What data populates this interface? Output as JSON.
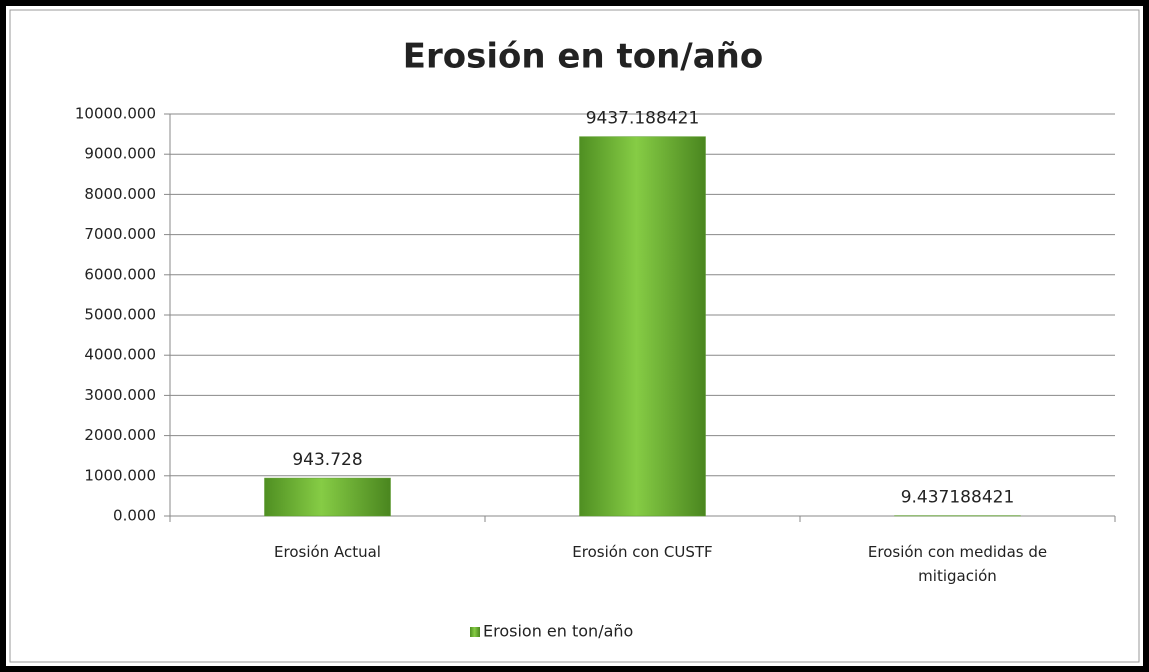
{
  "chart_data": {
    "type": "bar",
    "title": "Erosión en ton/año",
    "categories": [
      "Erosión Actual",
      "Erosión con CUSTF",
      "Erosión con medidas de mitigación"
    ],
    "series": [
      {
        "name": "Erosion en ton/año",
        "color": "#6fb535",
        "values": [
          943.728,
          9437.188421,
          9.437188421
        ]
      }
    ],
    "ylim": [
      0,
      10000
    ],
    "yticks": [
      {
        "value": 0,
        "label": "0.000"
      },
      {
        "value": 1000,
        "label": "1000.000"
      },
      {
        "value": 2000,
        "label": "2000.000"
      },
      {
        "value": 3000,
        "label": "3000.000"
      },
      {
        "value": 4000,
        "label": "4000.000"
      },
      {
        "value": 5000,
        "label": "5000.000"
      },
      {
        "value": 6000,
        "label": "6000.000"
      },
      {
        "value": 7000,
        "label": "7000.000"
      },
      {
        "value": 8000,
        "label": "8000.000"
      },
      {
        "value": 9000,
        "label": "9000.000"
      },
      {
        "value": 10000,
        "label": "10000.000"
      }
    ],
    "grid": true,
    "legend": "bottom"
  }
}
